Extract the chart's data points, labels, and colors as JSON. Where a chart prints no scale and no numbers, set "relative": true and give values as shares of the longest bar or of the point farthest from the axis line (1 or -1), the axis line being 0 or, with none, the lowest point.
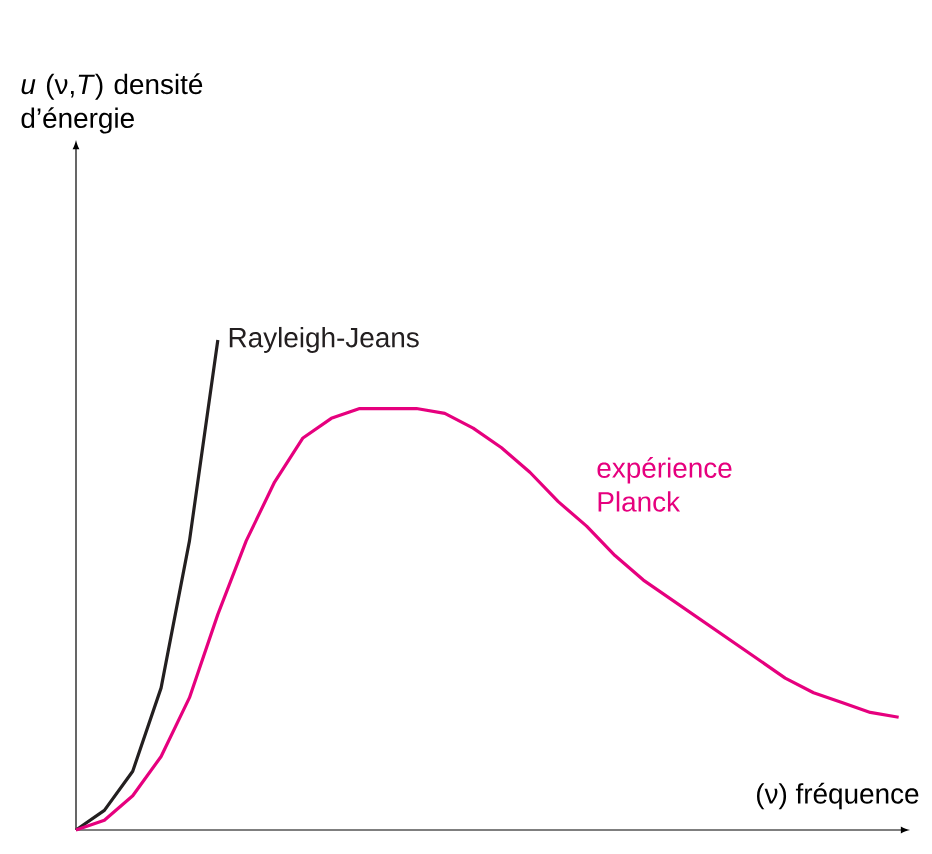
{
  "chart_data": {
    "type": "line",
    "relative": true,
    "marker": "none",
    "xlabel": "(ν) fréquence",
    "annotations": [
      "*u* (ν,*T*) densité d’énergie"
    ],
    "categories": [
      null,
      null,
      null,
      null,
      null,
      null,
      null,
      null,
      null,
      null,
      null,
      null,
      null,
      null,
      null,
      null,
      null,
      null,
      null,
      null,
      null,
      null,
      null,
      null,
      null,
      null,
      null,
      null,
      null,
      null
    ],
    "series": [
      {
        "name": "Rayleigh-Jeans",
        "color": "#231f20",
        "values": [
          0,
          0.04,
          0.12,
          0.29,
          0.59,
          1,
          null,
          null,
          null,
          null,
          null,
          null,
          null,
          null,
          null,
          null,
          null,
          null,
          null,
          null,
          null,
          null,
          null,
          null,
          null,
          null,
          null,
          null,
          null,
          null
        ]
      },
      {
        "name": "expérience Planck",
        "color": "#e6007e",
        "values": [
          0,
          0.02,
          0.07,
          0.15,
          0.27,
          0.44,
          0.59,
          0.71,
          0.8,
          0.84,
          0.86,
          0.86,
          0.86,
          0.85,
          0.82,
          0.78,
          0.73,
          0.67,
          0.62,
          0.56,
          0.51,
          0.47,
          0.43,
          0.39,
          0.35,
          0.31,
          0.28,
          0.26,
          0.24,
          0.23
        ]
      }
    ]
  }
}
